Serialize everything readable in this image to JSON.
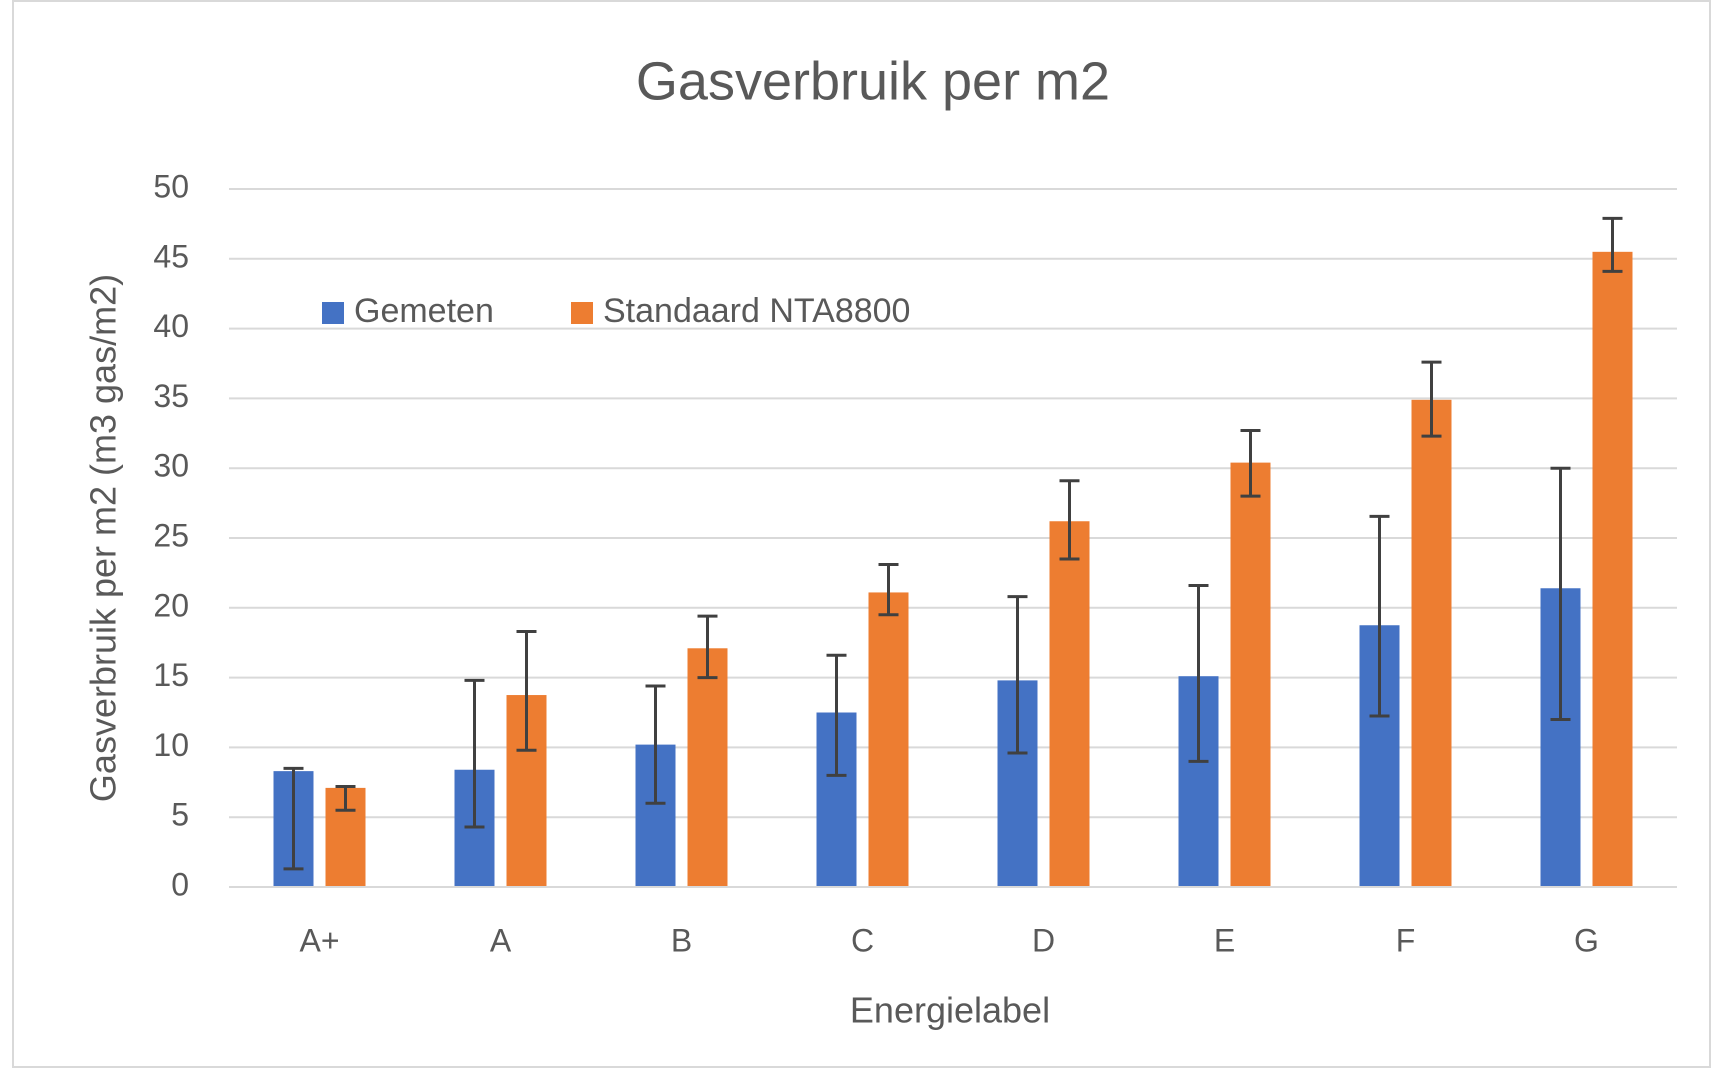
{
  "chart_data": {
    "type": "bar",
    "title": "Gasverbruik per m2",
    "x_label": "Energielabel",
    "y_label": "Gasverbruik per m2 (m3 gas/m2)",
    "categories": [
      "A+",
      "A",
      "B",
      "C",
      "D",
      "E",
      "F",
      "G"
    ],
    "series": [
      {
        "name": "Gemeten",
        "color": "#4472c4",
        "values": [
          8.3,
          8.4,
          10.2,
          12.5,
          14.8,
          15.1,
          18.75,
          21.4
        ],
        "error_plus": [
          0.2,
          6.4,
          4.2,
          4.1,
          6.0,
          6.5,
          7.8,
          8.6
        ],
        "error_minus": [
          7.0,
          4.1,
          4.2,
          4.5,
          5.2,
          6.1,
          6.5,
          9.4
        ]
      },
      {
        "name": "Standaard NTA8800",
        "color": "#ed7d31",
        "values": [
          7.1,
          13.75,
          17.1,
          21.1,
          26.2,
          30.4,
          34.9,
          45.5
        ],
        "error_plus": [
          0.1,
          4.55,
          2.3,
          2.0,
          2.9,
          2.3,
          2.7,
          2.4
        ],
        "error_minus": [
          1.6,
          3.95,
          2.1,
          1.6,
          2.7,
          2.4,
          2.6,
          1.4
        ]
      }
    ],
    "ylim": [
      0,
      50
    ],
    "yticks": [
      0,
      5,
      10,
      15,
      20,
      25,
      30,
      35,
      40,
      45,
      50
    ],
    "grid": true,
    "legend": "top-left"
  }
}
